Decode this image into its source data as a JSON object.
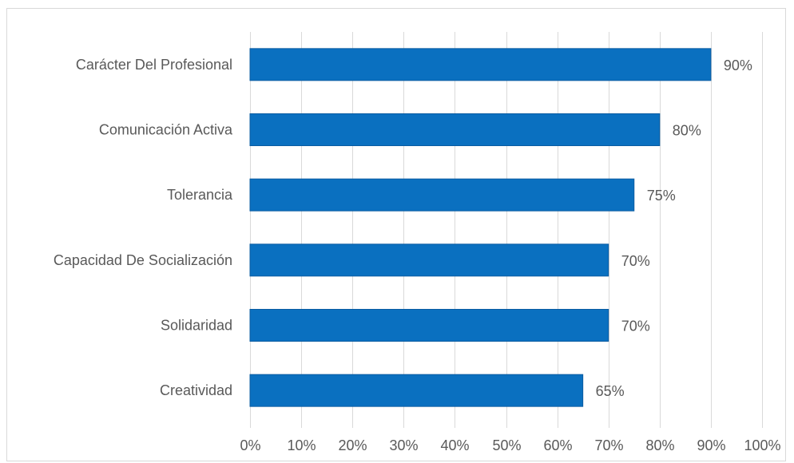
{
  "chart_data": {
    "type": "bar",
    "orientation": "horizontal",
    "categories": [
      "Carácter Del Profesional",
      "Comunicación Activa",
      "Tolerancia",
      "Capacidad De Socialización",
      "Solidaridad",
      "Creatividad"
    ],
    "values": [
      90,
      80,
      75,
      70,
      70,
      65
    ],
    "data_labels": [
      "90%",
      "80%",
      "75%",
      "70%",
      "70%",
      "65%"
    ],
    "x_ticks": [
      "0%",
      "10%",
      "20%",
      "30%",
      "40%",
      "50%",
      "60%",
      "70%",
      "80%",
      "90%",
      "100%"
    ],
    "xlim": [
      0,
      100
    ],
    "grid": true,
    "legend": "none",
    "bar_color": "#0a70c0",
    "title": "",
    "xlabel": "",
    "ylabel": ""
  }
}
